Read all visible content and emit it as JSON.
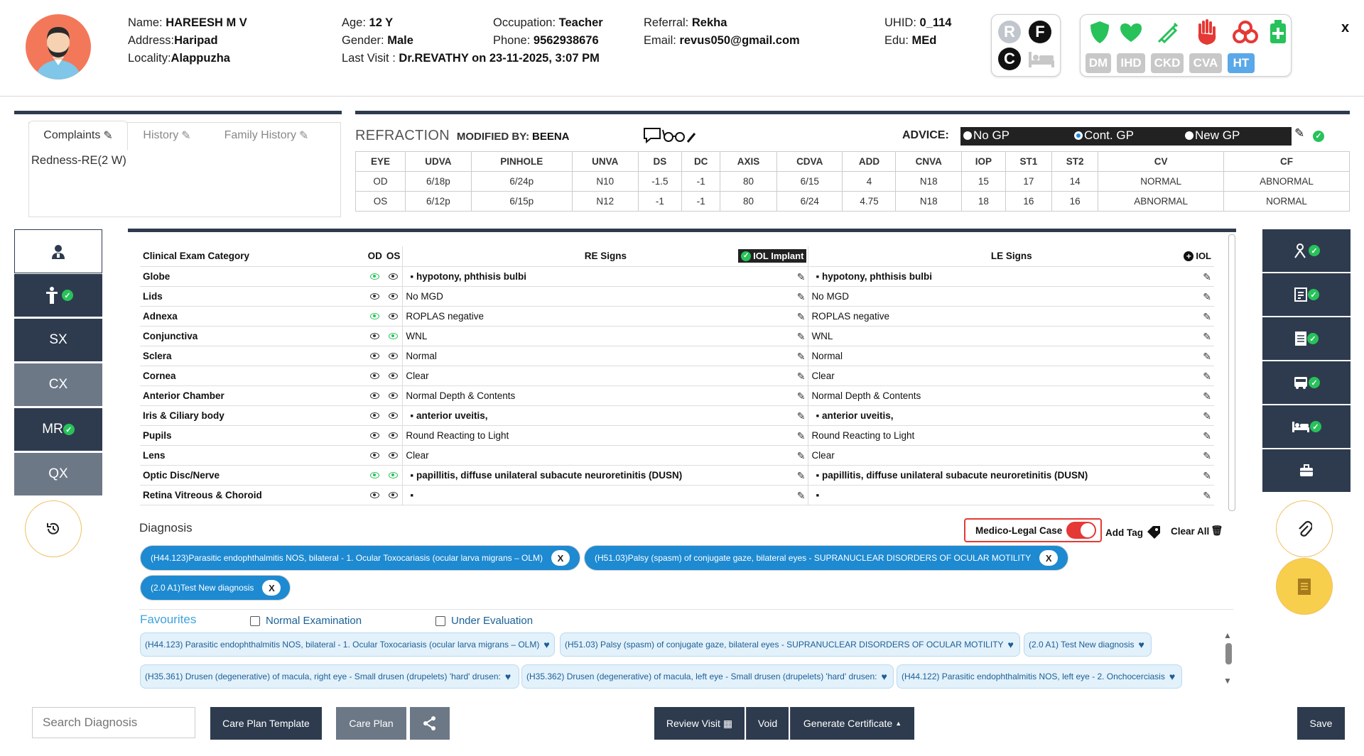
{
  "patient": {
    "name_label": "Name:",
    "name": "HAREESH M V",
    "address_label": "Address:",
    "address": "Haripad",
    "locality_label": "Locality:",
    "locality": "Alappuzha",
    "age_label": "Age:",
    "age": "12 Y",
    "gender_label": "Gender:",
    "gender": "Male",
    "last_visit_label": "Last Visit :",
    "last_visit": "Dr.REVATHY on  23-11-2025, 3:07 PM",
    "occupation_label": "Occupation:",
    "occupation": "Teacher",
    "phone_label": "Phone:",
    "phone": "9562938676",
    "referral_label": "Referral:",
    "referral": "Rekha",
    "email_label": "Email:",
    "email": "revus050@gmail.com",
    "uhid_label": "UHID:",
    "uhid": "0_114",
    "edu_label": "Edu:",
    "edu": "MEd"
  },
  "status_icons": {
    "r": "R",
    "f": "F",
    "c": "C"
  },
  "disease_tags": [
    "DM",
    "IHD",
    "CKD",
    "CVA",
    "HT"
  ],
  "close_label": "x",
  "tabs": [
    {
      "label": "Complaints",
      "active": true
    },
    {
      "label": "History",
      "active": false
    },
    {
      "label": "Family History",
      "active": false
    }
  ],
  "complaint_text": "Redness-RE(2 W)",
  "refraction": {
    "title": "REFRACTION",
    "modified_label": "MODIFIED BY:",
    "modified_by": "BEENA",
    "advice_label": "ADVICE:",
    "advice_options": [
      "No GP",
      "Cont. GP",
      "New GP"
    ],
    "advice_selected": "Cont. GP",
    "headers": [
      "EYE",
      "UDVA",
      "PINHOLE",
      "UNVA",
      "DS",
      "DC",
      "AXIS",
      "CDVA",
      "ADD",
      "CNVA",
      "IOP",
      "ST1",
      "ST2",
      "CV",
      "CF"
    ],
    "rows": [
      [
        "OD",
        "6/18p",
        "6/24p",
        "N10",
        "-1.5",
        "-1",
        "80",
        "6/15",
        "4",
        "N18",
        "15",
        "17",
        "14",
        "NORMAL",
        "ABNORMAL"
      ],
      [
        "OS",
        "6/12p",
        "6/15p",
        "N12",
        "-1",
        "-1",
        "80",
        "6/24",
        "4.75",
        "N18",
        "18",
        "16",
        "16",
        "ABNORMAL",
        "NORMAL"
      ]
    ]
  },
  "left_nav": [
    "SX",
    "CX",
    "MR",
    "QX"
  ],
  "exam": {
    "h_category": "Clinical Exam Category",
    "h_od": "OD",
    "h_os": "OS",
    "h_re": "RE Signs",
    "h_le": "LE Signs",
    "iol_implant": "IOL Implant",
    "iol": "IOL",
    "rows": [
      {
        "cat": "Globe",
        "re": "hypotony, phthisis bulbi",
        "le": "hypotony, phthisis bulbi",
        "bullet": true,
        "od": "g",
        "os": "n"
      },
      {
        "cat": "Lids",
        "re": "No MGD",
        "le": "No MGD",
        "bullet": false,
        "od": "n",
        "os": "n"
      },
      {
        "cat": "Adnexa",
        "re": "ROPLAS negative",
        "le": "ROPLAS negative",
        "bullet": false,
        "od": "g",
        "os": "n"
      },
      {
        "cat": "Conjunctiva",
        "re": "WNL",
        "le": "WNL",
        "bullet": false,
        "od": "n",
        "os": "g"
      },
      {
        "cat": "Sclera",
        "re": "Normal",
        "le": "Normal",
        "bullet": false,
        "od": "n",
        "os": "n"
      },
      {
        "cat": "Cornea",
        "re": "Clear",
        "le": "Clear",
        "bullet": false,
        "od": "n",
        "os": "n"
      },
      {
        "cat": "Anterior Chamber",
        "re": "Normal Depth & Contents",
        "le": "Normal Depth & Contents",
        "bullet": false,
        "od": "n",
        "os": "n"
      },
      {
        "cat": "Iris & Ciliary body",
        "re": "anterior uveitis,",
        "le": "anterior uveitis,",
        "bullet": true,
        "od": "n",
        "os": "n"
      },
      {
        "cat": "Pupils",
        "re": "Round Reacting to Light",
        "le": "Round Reacting to Light",
        "bullet": false,
        "od": "n",
        "os": "n"
      },
      {
        "cat": "Lens",
        "re": "Clear",
        "le": "Clear",
        "bullet": false,
        "od": "n",
        "os": "n"
      },
      {
        "cat": "Optic Disc/Nerve",
        "re": "papillitis, diffuse unilateral subacute neuroretinitis (DUSN)",
        "le": "papillitis, diffuse unilateral subacute neuroretinitis (DUSN)",
        "bullet": true,
        "od": "g",
        "os": "g"
      },
      {
        "cat": "Retina Vitreous & Choroid",
        "re": "",
        "le": "",
        "bullet": true,
        "od": "n",
        "os": "n"
      }
    ]
  },
  "diagnosis": {
    "title": "Diagnosis",
    "medico_legal": "Medico-Legal Case",
    "add_tag": "Add Tag",
    "clear_all": "Clear All",
    "chips": [
      "(H44.123)Parasitic endophthalmitis NOS, bilateral - 1. Ocular Toxocariasis (ocular larva migrans – OLM)",
      "(H51.03)Palsy (spasm) of conjugate gaze, bilateral eyes - SUPRANUCLEAR DISORDERS OF OCULAR MOTILITY",
      "(2.0 A1)Test New diagnosis"
    ],
    "chip_close": "X"
  },
  "favourites": {
    "title": "Favourites",
    "normal_exam": "Normal Examination",
    "under_eval": "Under Evaluation",
    "items": [
      "(H44.123) Parasitic endophthalmitis NOS, bilateral - 1. Ocular Toxocariasis (ocular larva migrans – OLM)",
      "(H51.03) Palsy (spasm) of conjugate gaze, bilateral eyes - SUPRANUCLEAR DISORDERS OF OCULAR MOTILITY",
      "(2.0 A1) Test New diagnosis",
      "(H35.361) Drusen (degenerative) of macula, right eye - Small drusen (drupelets) 'hard' drusen:",
      "(H35.362) Drusen (degenerative) of macula, left eye - Small drusen (drupelets) 'hard' drusen:",
      "(H44.122) Parasitic endophthalmitis NOS, left eye - 2. Onchocerciasis"
    ]
  },
  "footer": {
    "search_placeholder": "Search Diagnosis",
    "care_plan_template": "Care Plan Template",
    "care_plan": "Care Plan",
    "review_visit": "Review Visit",
    "void": "Void",
    "generate_certificate": "Generate Certificate",
    "save": "Save"
  },
  "colors": {
    "navy": "#2e3b4e",
    "chip_blue": "#1d8ad1",
    "green": "#27c25a",
    "red": "#e53935"
  }
}
